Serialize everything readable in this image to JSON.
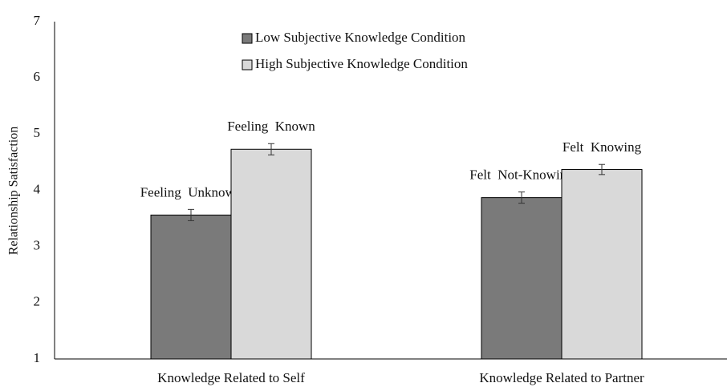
{
  "chart_data": {
    "type": "bar",
    "ylabel": "Relationship Satisfaction",
    "categories": [
      "Knowledge Related to Self",
      "Knowledge Related to Partner"
    ],
    "series": [
      {
        "name": "Low Subjective Knowledge Condition",
        "color": "#7a7a7a",
        "values": [
          3.56,
          3.87
        ],
        "errors": [
          0.1,
          0.1
        ],
        "labels": [
          "Feeling  Unknown",
          "Felt  Not-Knowing"
        ]
      },
      {
        "name": "High Subjective Knowledge Condition",
        "color": "#d9d9d9",
        "values": [
          4.73,
          4.37
        ],
        "errors": [
          0.1,
          0.09
        ],
        "labels": [
          "Feeling  Known",
          "Felt  Knowing"
        ]
      }
    ],
    "ylim": [
      1,
      7
    ],
    "yticks": [
      1,
      2,
      3,
      4,
      5,
      6,
      7
    ],
    "grid": false,
    "legend": "top"
  }
}
